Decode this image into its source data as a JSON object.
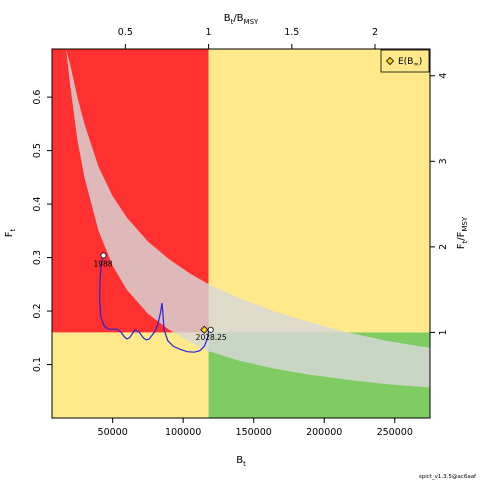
{
  "chart_data": {
    "type": "line",
    "title": "",
    "xlabel": "B",
    "xlabel_sub": "t",
    "ylabel": "F",
    "ylabel_sub": "t",
    "top_axis_label": "B",
    "top_axis_sub1": "t",
    "top_axis_slash": "/B",
    "top_axis_sub2": "MSY",
    "right_axis_label": "F",
    "right_axis_sub1": "t",
    "right_axis_slash": "/F",
    "right_axis_sub2": "MSY",
    "xlim": [
      7000,
      275000
    ],
    "ylim": [
      0.0,
      0.69
    ],
    "x_ticks": [
      50000,
      100000,
      150000,
      200000,
      250000
    ],
    "x_tick_labels": [
      "50000",
      "100000",
      "150000",
      "200000",
      "250000"
    ],
    "y_ticks": [
      0.1,
      0.2,
      0.3,
      0.4,
      0.5,
      0.6
    ],
    "y_tick_labels": [
      "0.1",
      "0.2",
      "0.3",
      "0.4",
      "0.5",
      "0.6"
    ],
    "top_ticks": [
      0.5,
      1,
      1.5,
      2
    ],
    "top_tick_labels": [
      "0.5",
      "1",
      "1.5",
      "2"
    ],
    "right_ticks": [
      1,
      2,
      3,
      4
    ],
    "right_tick_labels": [
      "1",
      "2",
      "3",
      "4"
    ],
    "bmsy": 118000,
    "fmsy": 0.16,
    "grid": false,
    "legend_position": "top-right",
    "legend_label": "E(B",
    "legend_label_sub": "∞",
    "legend_label_close": ")",
    "start_label": "1988",
    "end_label": "2028.25",
    "colors": {
      "red": "#ff3030",
      "yellow": "#ffe98b",
      "green": "#7fcc63",
      "band": "#d8d8d8",
      "trajectory": "#2323dd",
      "marker_fill_end": "#ffcc22",
      "marker_fill_start": "#ffffff"
    },
    "band": {
      "x": [
        17000,
        20000,
        25000,
        30000,
        40000,
        50000,
        60000,
        75000,
        90000,
        105000,
        118000,
        140000,
        165000,
        190000,
        215000,
        245000,
        275000
      ],
      "upper": [
        0.69,
        0.66,
        0.6,
        0.55,
        0.47,
        0.415,
        0.375,
        0.33,
        0.297,
        0.27,
        0.25,
        0.224,
        0.199,
        0.179,
        0.161,
        0.144,
        0.131
      ],
      "lower": [
        0.69,
        0.62,
        0.52,
        0.45,
        0.35,
        0.285,
        0.24,
        0.195,
        0.165,
        0.142,
        0.125,
        0.107,
        0.092,
        0.081,
        0.072,
        0.063,
        0.057
      ]
    },
    "series": [
      {
        "x": [
          43500,
          42000,
          41000,
          40800,
          41500,
          44000,
          47000,
          50000,
          53000,
          56000,
          58000,
          60000,
          62000,
          64000,
          66000,
          69000,
          72000,
          74000,
          76000,
          78000,
          80000,
          82000,
          84000,
          85000,
          85500,
          86500,
          89000,
          93000,
          98000,
          103000,
          108000,
          112000,
          115000,
          117000,
          118000
        ],
        "y": [
          0.302,
          0.29,
          0.26,
          0.22,
          0.19,
          0.172,
          0.166,
          0.166,
          0.166,
          0.16,
          0.153,
          0.148,
          0.15,
          0.158,
          0.165,
          0.16,
          0.149,
          0.146,
          0.148,
          0.155,
          0.162,
          0.175,
          0.198,
          0.215,
          0.2,
          0.165,
          0.145,
          0.134,
          0.128,
          0.124,
          0.123,
          0.126,
          0.134,
          0.147,
          0.162
        ]
      }
    ],
    "points": {
      "start": {
        "x": 43500,
        "y": 0.304
      },
      "end": {
        "x": 119500,
        "y": 0.165
      },
      "expected_equilibrium": {
        "x": 115000,
        "y": 0.165
      }
    },
    "footer": "spict_v1.3.5@ac6aaf"
  }
}
